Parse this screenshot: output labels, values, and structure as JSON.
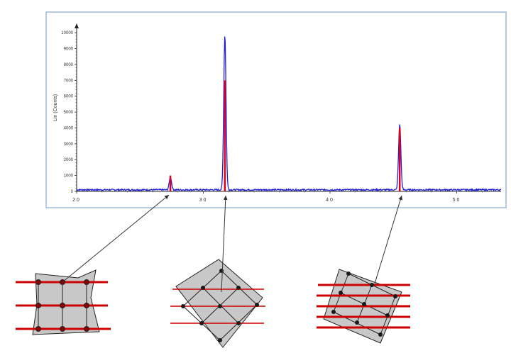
{
  "chart_data": {
    "type": "line",
    "title": "",
    "xlabel": "",
    "ylabel": "Lin (Counts)",
    "xlim": [
      20,
      53.5
    ],
    "ylim": [
      0,
      10500
    ],
    "x_ticks": [
      20,
      30,
      40,
      50
    ],
    "x_tick_labels": [
      "20",
      "30",
      "40",
      "50"
    ],
    "y_ticks": [
      0,
      1000,
      2000,
      3000,
      4000,
      5000,
      6000,
      7000,
      8000,
      9000,
      10000
    ],
    "y_tick_labels": [
      "0",
      "1000",
      "2000",
      "3000",
      "4000",
      "5000",
      "6000",
      "7000",
      "8000",
      "9000",
      "10000"
    ],
    "grid": false,
    "series": [
      {
        "color": "#1f1fd6",
        "baseline": 100,
        "peaks": [
          {
            "x": 27.4,
            "height": 800
          },
          {
            "x": 31.7,
            "height": 9750
          },
          {
            "x": 45.5,
            "height": 4150
          }
        ]
      },
      {
        "color": "#e0001a",
        "sticks": [
          {
            "x": 27.4,
            "value": 1000
          },
          {
            "x": 31.7,
            "value": 7000
          },
          {
            "x": 45.5,
            "value": 4000
          }
        ]
      }
    ]
  },
  "colors": {
    "frame": "#8aa8cc",
    "pattern_line": "#1f1fd6",
    "reference_sticks": "#e0001a",
    "crystal_fill": "#c8c8c8",
    "plane_lines": "#cc0000",
    "atoms": "#1a1a1a",
    "arrows": "#333333"
  }
}
